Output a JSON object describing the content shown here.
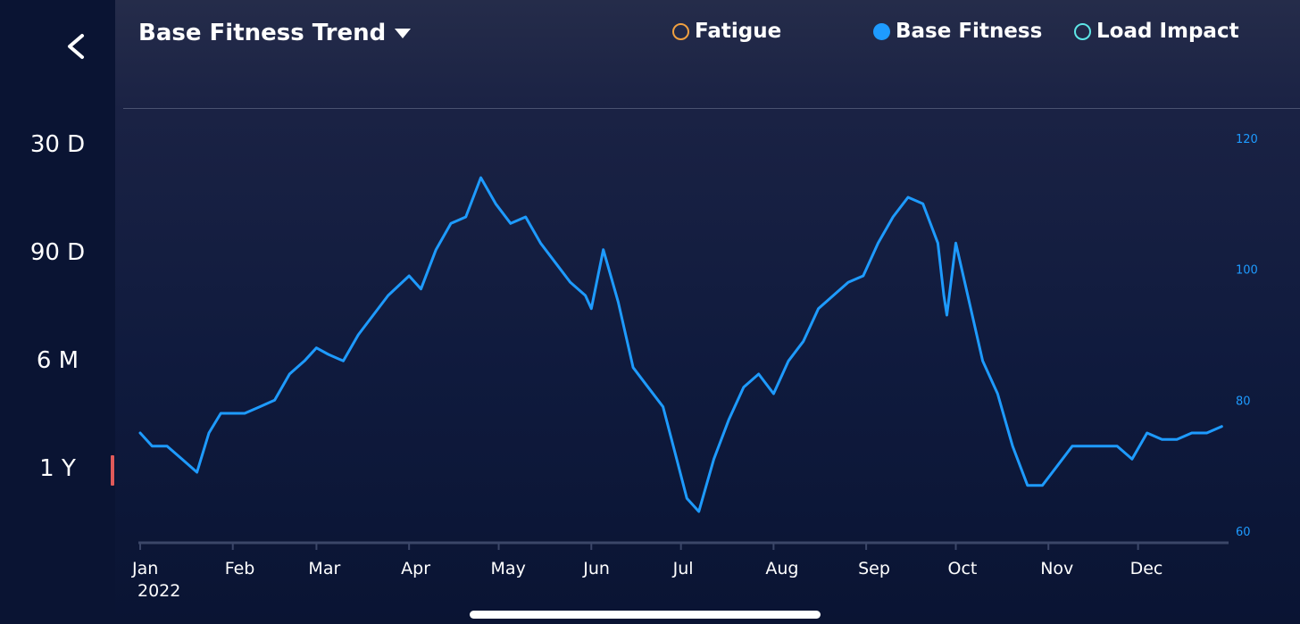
{
  "sidebar": {
    "back_icon": "chevron-left-icon",
    "ranges": [
      {
        "label": "30 D"
      },
      {
        "label": "90 D"
      },
      {
        "label": "6 M"
      },
      {
        "label": "1 Y",
        "selected": true
      }
    ],
    "selected_color": "#e05a5a"
  },
  "header": {
    "title": "Base Fitness Trend",
    "dropdown_icon": "caret-down-icon"
  },
  "legend": [
    {
      "label": "Fatigue",
      "color": "#f0a040",
      "filled": false
    },
    {
      "label": "Base Fitness",
      "color": "#1e9bff",
      "filled": true
    },
    {
      "label": "Load Impact",
      "color": "#5ee6e6",
      "filled": false
    }
  ],
  "chart_data": {
    "type": "line",
    "title": "",
    "xlabel": "",
    "ylabel": "",
    "ylim": [
      60,
      120
    ],
    "y_ticks": [
      120,
      100,
      80,
      60
    ],
    "x_tick_labels": [
      "Jan",
      "Feb",
      "Mar",
      "Apr",
      "May",
      "Jun",
      "Jul",
      "Aug",
      "Sep",
      "Oct",
      "Nov",
      "Dec"
    ],
    "x_year_label": "2022",
    "grid": false,
    "series": [
      {
        "name": "Base Fitness",
        "color": "#1e9bff",
        "x": [
          "2022-01-01",
          "2022-01-05",
          "2022-01-10",
          "2022-01-15",
          "2022-01-20",
          "2022-01-24",
          "2022-01-28",
          "2022-02-01",
          "2022-02-05",
          "2022-02-10",
          "2022-02-15",
          "2022-02-20",
          "2022-02-25",
          "2022-03-01",
          "2022-03-05",
          "2022-03-10",
          "2022-03-15",
          "2022-03-20",
          "2022-03-25",
          "2022-04-01",
          "2022-04-05",
          "2022-04-10",
          "2022-04-15",
          "2022-04-20",
          "2022-04-25",
          "2022-04-30",
          "2022-05-05",
          "2022-05-10",
          "2022-05-15",
          "2022-05-20",
          "2022-05-25",
          "2022-05-30",
          "2022-06-01",
          "2022-06-05",
          "2022-06-10",
          "2022-06-15",
          "2022-06-20",
          "2022-06-25",
          "2022-06-29",
          "2022-07-03",
          "2022-07-07",
          "2022-07-12",
          "2022-07-17",
          "2022-07-22",
          "2022-07-27",
          "2022-08-01",
          "2022-08-06",
          "2022-08-11",
          "2022-08-16",
          "2022-08-21",
          "2022-08-26",
          "2022-08-31",
          "2022-09-05",
          "2022-09-10",
          "2022-09-15",
          "2022-09-20",
          "2022-09-25",
          "2022-09-27",
          "2022-09-28",
          "2022-10-01",
          "2022-10-05",
          "2022-10-10",
          "2022-10-15",
          "2022-10-20",
          "2022-10-25",
          "2022-10-30",
          "2022-11-04",
          "2022-11-09",
          "2022-11-14",
          "2022-11-19",
          "2022-11-24",
          "2022-11-29",
          "2022-12-04",
          "2022-12-09",
          "2022-12-14",
          "2022-12-19",
          "2022-12-24",
          "2022-12-29"
        ],
        "values": [
          75,
          73,
          73,
          71,
          69,
          75,
          78,
          78,
          78,
          79,
          80,
          84,
          86,
          88,
          87,
          86,
          90,
          93,
          96,
          99,
          97,
          103,
          107,
          108,
          114,
          110,
          107,
          108,
          104,
          101,
          98,
          96,
          94,
          103,
          95,
          85,
          82,
          79,
          72,
          65,
          63,
          71,
          77,
          82,
          84,
          81,
          86,
          89,
          94,
          96,
          98,
          99,
          104,
          108,
          111,
          110,
          104,
          96,
          93,
          104,
          96,
          86,
          81,
          73,
          67,
          67,
          70,
          73,
          73,
          73,
          73,
          71,
          75,
          74,
          74,
          75,
          75,
          76
        ]
      }
    ]
  }
}
